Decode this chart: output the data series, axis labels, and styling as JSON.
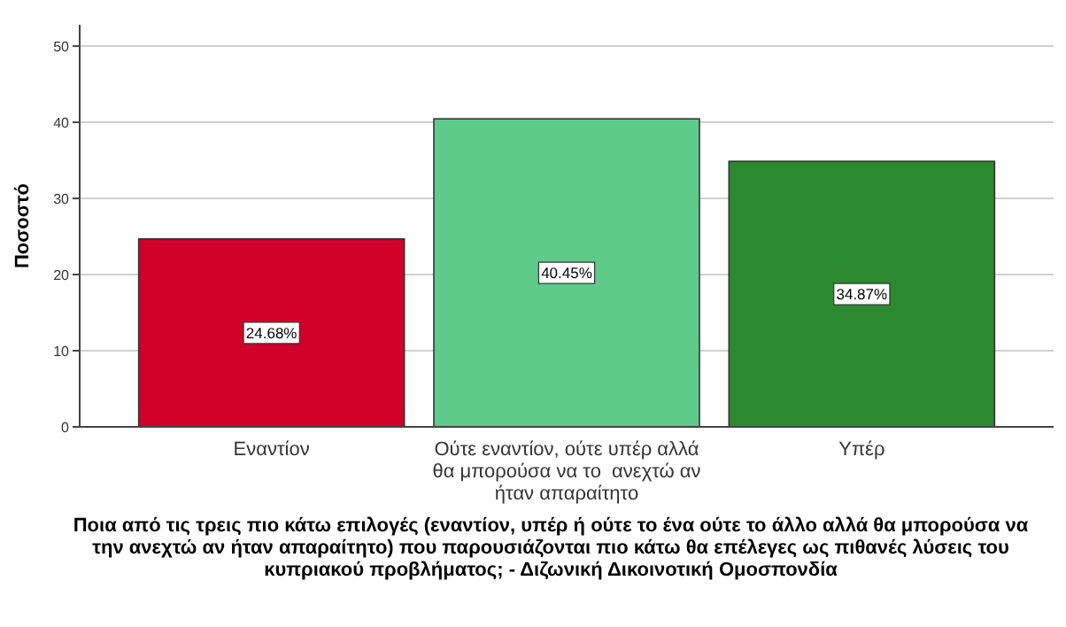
{
  "chart_data": {
    "type": "bar",
    "xlabel": "Ποια από τις τρεις πιο κάτω επιλογές (εναντίον, υπέρ ή ούτε το ένα ούτε το άλλο αλλά θα μπορούσα να την ανεχτώ αν ήταν απαραίτητο) που παρουσιάζονται πιο κάτω θα επέλεγες ως πιθανές λύσεις του κυπριακού προβλήματος; - Διζωνική Δικοινοτική Ομοσπονδία",
    "ylabel": "Ποσοστό",
    "categories": [
      "Εναντίον",
      "Ούτε εναντίον, ούτε υπέρ αλλά θα μπορούσα να το  ανεχτώ αν ήταν απαραίτητο",
      "Υπέρ"
    ],
    "values": [
      24.68,
      40.45,
      34.87
    ],
    "value_labels": [
      "24.68%",
      "40.45%",
      "34.87%"
    ],
    "colors": [
      "#d1002b",
      "#5ecb8a",
      "#2b8a2f"
    ],
    "ylim": [
      0,
      52.8
    ],
    "yticks": [
      0,
      10,
      20,
      30,
      40,
      50
    ],
    "grid": "y"
  }
}
